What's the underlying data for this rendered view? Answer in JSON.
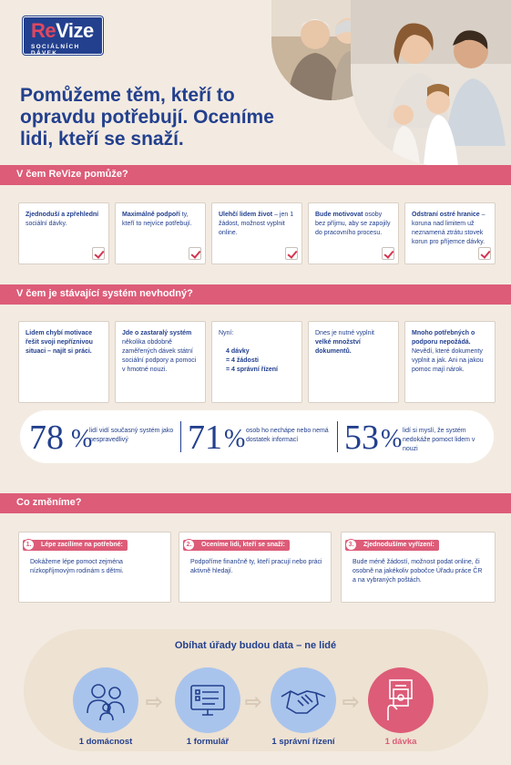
{
  "logo": {
    "main_a": "Re",
    "main_b": "Vize",
    "sub": "SOCIÁLNÍCH DÁVEK"
  },
  "hero": {
    "title": "Pomůžeme těm, kteří to opravdu potřebují.  Oceníme lidi, kteří se snaží."
  },
  "sections": {
    "help": "V čem ReVize pomůže?",
    "bad": "V čem je stávající systém nevhodný?",
    "change": "Co změníme?"
  },
  "help_cards": [
    {
      "bold": "Zjednoduší a zpřehlední",
      "rest": " sociální dávky."
    },
    {
      "bold": "Maximálně podpoří",
      "rest": " ty, kteří to nejvíce potřebují."
    },
    {
      "bold": "Ulehčí lidem život",
      "rest": " – jen 1 žádost, možnost vyplnit online."
    },
    {
      "bold": "Bude motivovat",
      "rest": " osoby bez příjmu, aby se zapojily do pracovního procesu."
    },
    {
      "bold": "Odstraní ostré hranice",
      "rest": " – koruna nad limitem už neznamená ztrátu stovek korun pro příjemce dávky."
    }
  ],
  "bad_cards": {
    "c1": "Lidem chybí motivace řešit svoji nepříznivou situaci – najít si práci.",
    "c2_bold": "Jde o zastaralý systém",
    "c2_rest": " několika obdobně zaměřených dávek státní sociální podpory a pomoci v hmotné nouzi.",
    "c3_head": "Nyní:",
    "c3_lines": [
      "4 dávky",
      "= 4 žádosti",
      "= 4 správní řízení"
    ],
    "c4_pre": "Dnes je nutné vyplnit ",
    "c4_bold": "velké množství dokumentů.",
    "c5_bold": "Mnoho potřebných o podporu nepožádá.",
    "c5_rest": " Nevědí, které dokumenty vyplnit a jak. Ani na jakou pomoc mají nárok."
  },
  "stats": [
    {
      "num": "78",
      "pct": "%",
      "text": "lidí vidí současný systém jako nespravedlivý"
    },
    {
      "num": "71",
      "pct": "%",
      "text": "osob ho nechápe nebo nemá dostatek informací"
    },
    {
      "num": "53",
      "pct": "%",
      "text": "lidí si myslí, že systém nedokáže pomoct lidem v nouzi"
    }
  ],
  "changes": [
    {
      "n": "1.",
      "tag": "Lépe zacílíme na potřebné:",
      "text": "Dokážeme lépe pomoct zejména nízkopříjmovým rodinám s dětmi."
    },
    {
      "n": "2.",
      "tag": "Oceníme lidi, kteří se snaží:",
      "text": "Podpoříme finančně ty, kteří pracují nebo práci aktivně hledají."
    },
    {
      "n": "3.",
      "tag": "Zjednodušíme vyřízení:",
      "text": "Bude méně žádostí, možnost podat online, či osobně na jakékoliv pobočce Úřadu práce ČR a na vybraných poštách."
    }
  ],
  "process": {
    "title": "Obíhat úřady budou data – ne lidé",
    "steps": [
      {
        "label": "1 domácnost",
        "icon": "household-icon"
      },
      {
        "label": "1 formulář",
        "icon": "online-form-icon"
      },
      {
        "label": "1 správní řízení",
        "icon": "handshake-icon"
      },
      {
        "label": "1 dávka",
        "icon": "cash-withdrawal-icon"
      }
    ]
  },
  "colors": {
    "navy": "#23408e",
    "pink": "#dd5c78",
    "beige": "#f3ebe1",
    "light_blue": "#a9c4ec"
  }
}
